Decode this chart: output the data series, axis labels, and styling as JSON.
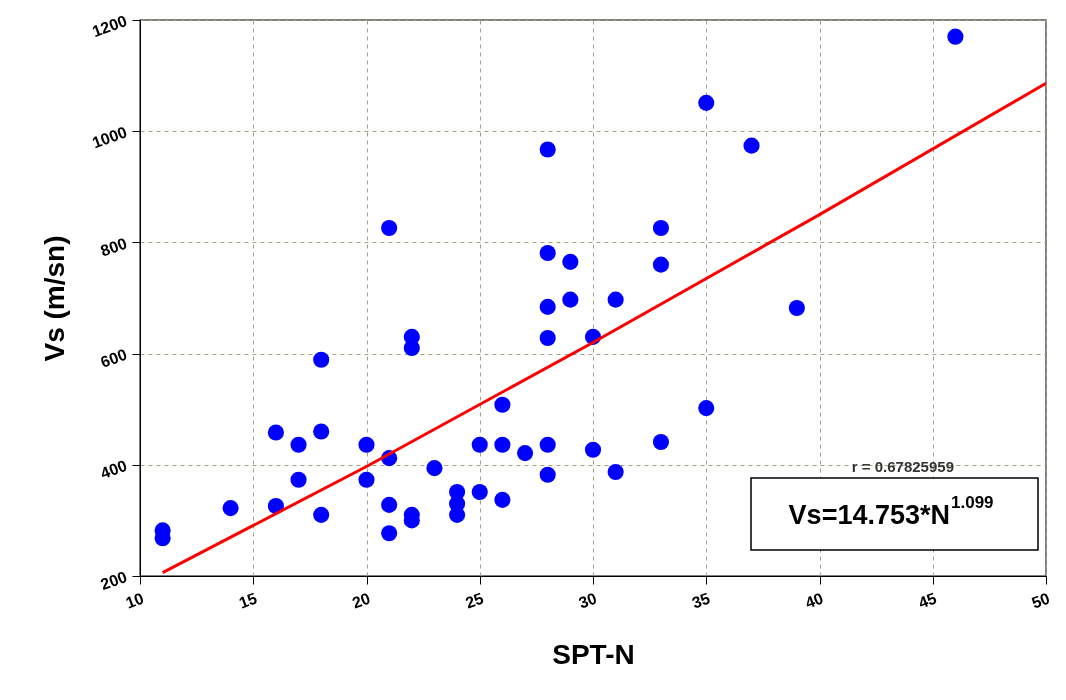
{
  "chart_data": {
    "type": "scatter",
    "xlabel": "SPT-N",
    "ylabel": "Vs (m/sn)",
    "xlim": [
      10,
      50
    ],
    "xticks": [
      10,
      15,
      20,
      25,
      30,
      35,
      40,
      45,
      50
    ],
    "ylim": [
      200,
      1200
    ],
    "yticks": [
      200,
      400,
      600,
      800,
      1000,
      1200
    ],
    "grid": true,
    "marker": "circle",
    "series": [
      {
        "color": "#0000ff",
        "x": [
          11,
          11,
          14,
          16,
          16,
          17,
          17,
          18,
          18,
          18,
          20,
          20,
          21,
          21,
          21,
          21,
          22,
          22,
          22,
          22,
          23,
          24,
          24,
          24,
          25,
          25,
          26,
          26,
          26,
          27,
          28,
          28,
          28,
          28,
          28,
          28,
          29,
          29,
          30,
          30,
          31,
          31,
          33,
          33,
          33,
          35,
          35,
          37,
          39,
          46
        ],
        "values": [
          282,
          268,
          322,
          458,
          326,
          436,
          373,
          589,
          460,
          310,
          436,
          373,
          826,
          412,
          328,
          277,
          630,
          610,
          310,
          300,
          394,
          351,
          330,
          310,
          436,
          351,
          508,
          436,
          337,
          421,
          967,
          781,
          684,
          628,
          436,
          382,
          765,
          697,
          630,
          427,
          697,
          387,
          826,
          760,
          441,
          1051,
          502,
          974,
          682,
          1170
        ]
      },
      {
        "type": "line",
        "marker": "none",
        "color": "#ff0000",
        "x": [
          11,
          20,
          30,
          40,
          50
        ],
        "values": [
          206,
          397,
          620,
          850,
          1086
        ]
      }
    ],
    "annotations": [
      "r = 0.67825959",
      "Vs=14.753*N$^{1.099}$"
    ]
  }
}
